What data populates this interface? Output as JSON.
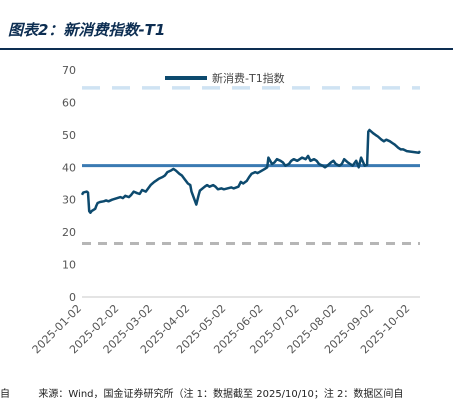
{
  "title": "图表2：新消费指数-T1",
  "footer": {
    "prefix": "自",
    "source": "来源：Wind，国金证券研究所（注 1：数据截至 2025/10/10；注 2：数据区间自"
  },
  "colors": {
    "series": "#0d4a6e",
    "mean": "#3a7ab2",
    "upper_band": "#cfe3f3",
    "lower_band": "#b6b6b6",
    "title": "#0d2e52"
  },
  "chart_data": {
    "type": "line",
    "ylim": [
      0,
      70
    ],
    "yticks": [
      0,
      10,
      20,
      30,
      40,
      50,
      60,
      70
    ],
    "xlim": [
      "2025-01-02",
      "2025-10-10"
    ],
    "xticks": [
      "2025-01-02",
      "2025-02-02",
      "2025-03-02",
      "2025-04-02",
      "2025-05-02",
      "2025-06-02",
      "2025-07-02",
      "2025-08-02",
      "2025-09-02",
      "2025-10-02"
    ],
    "legend_position": "top-center",
    "grid": false,
    "series": [
      {
        "name": "新消费-T1指数",
        "style": "solid",
        "points": [
          [
            "2025-01-02",
            31.5
          ],
          [
            "2025-01-03",
            32.2
          ],
          [
            "2025-01-06",
            32.5
          ],
          [
            "2025-01-07",
            32.2
          ],
          [
            "2025-01-08",
            26.5
          ],
          [
            "2025-01-09",
            26.0
          ],
          [
            "2025-01-10",
            26.5
          ],
          [
            "2025-01-13",
            27.2
          ],
          [
            "2025-01-14",
            28.2
          ],
          [
            "2025-01-15",
            29.0
          ],
          [
            "2025-01-17",
            29.3
          ],
          [
            "2025-01-20",
            29.5
          ],
          [
            "2025-01-22",
            29.8
          ],
          [
            "2025-01-24",
            29.5
          ],
          [
            "2025-01-27",
            30.0
          ],
          [
            "2025-02-03",
            30.8
          ],
          [
            "2025-02-05",
            30.5
          ],
          [
            "2025-02-07",
            31.2
          ],
          [
            "2025-02-10",
            30.8
          ],
          [
            "2025-02-12",
            31.5
          ],
          [
            "2025-02-14",
            32.5
          ],
          [
            "2025-02-17",
            32.0
          ],
          [
            "2025-02-19",
            31.8
          ],
          [
            "2025-02-21",
            33.0
          ],
          [
            "2025-02-24",
            32.5
          ],
          [
            "2025-02-26",
            33.5
          ],
          [
            "2025-02-28",
            34.5
          ],
          [
            "2025-03-03",
            35.5
          ],
          [
            "2025-03-05",
            36.0
          ],
          [
            "2025-03-07",
            36.5
          ],
          [
            "2025-03-10",
            37.0
          ],
          [
            "2025-03-12",
            37.5
          ],
          [
            "2025-03-14",
            38.5
          ],
          [
            "2025-03-17",
            39.0
          ],
          [
            "2025-03-19",
            39.5
          ],
          [
            "2025-03-21",
            39.0
          ],
          [
            "2025-03-24",
            38.0
          ],
          [
            "2025-03-26",
            37.5
          ],
          [
            "2025-03-28",
            36.5
          ],
          [
            "2025-03-31",
            35.0
          ],
          [
            "2025-04-02",
            34.5
          ],
          [
            "2025-04-03",
            32.5
          ],
          [
            "2025-04-07",
            28.5
          ],
          [
            "2025-04-08",
            30.0
          ],
          [
            "2025-04-09",
            31.5
          ],
          [
            "2025-04-10",
            32.8
          ],
          [
            "2025-04-14",
            34.0
          ],
          [
            "2025-04-16",
            34.5
          ],
          [
            "2025-04-18",
            34.0
          ],
          [
            "2025-04-21",
            34.5
          ],
          [
            "2025-04-23",
            34.0
          ],
          [
            "2025-04-25",
            33.2
          ],
          [
            "2025-04-28",
            33.5
          ],
          [
            "2025-04-30",
            33.2
          ],
          [
            "2025-05-06",
            33.8
          ],
          [
            "2025-05-08",
            33.5
          ],
          [
            "2025-05-12",
            34.0
          ],
          [
            "2025-05-14",
            35.5
          ],
          [
            "2025-05-16",
            35.0
          ],
          [
            "2025-05-19",
            35.8
          ],
          [
            "2025-05-21",
            37.0
          ],
          [
            "2025-05-23",
            38.0
          ],
          [
            "2025-05-26",
            38.5
          ],
          [
            "2025-05-28",
            38.2
          ],
          [
            "2025-06-03",
            39.5
          ],
          [
            "2025-06-05",
            40.0
          ],
          [
            "2025-06-06",
            43.0
          ],
          [
            "2025-06-09",
            41.0
          ],
          [
            "2025-06-11",
            41.5
          ],
          [
            "2025-06-13",
            42.5
          ],
          [
            "2025-06-16",
            42.0
          ],
          [
            "2025-06-18",
            41.5
          ],
          [
            "2025-06-20",
            40.5
          ],
          [
            "2025-06-23",
            41.0
          ],
          [
            "2025-06-25",
            42.0
          ],
          [
            "2025-06-27",
            42.5
          ],
          [
            "2025-06-30",
            42.0
          ],
          [
            "2025-07-02",
            42.5
          ],
          [
            "2025-07-04",
            43.0
          ],
          [
            "2025-07-07",
            42.5
          ],
          [
            "2025-07-09",
            43.5
          ],
          [
            "2025-07-11",
            42.0
          ],
          [
            "2025-07-14",
            42.5
          ],
          [
            "2025-07-16",
            42.0
          ],
          [
            "2025-07-18",
            41.0
          ],
          [
            "2025-07-21",
            40.5
          ],
          [
            "2025-07-23",
            40.0
          ],
          [
            "2025-07-25",
            40.5
          ],
          [
            "2025-07-28",
            41.5
          ],
          [
            "2025-07-30",
            42.0
          ],
          [
            "2025-08-01",
            41.0
          ],
          [
            "2025-08-04",
            40.5
          ],
          [
            "2025-08-06",
            41.0
          ],
          [
            "2025-08-08",
            42.5
          ],
          [
            "2025-08-11",
            41.5
          ],
          [
            "2025-08-13",
            41.0
          ],
          [
            "2025-08-15",
            40.5
          ],
          [
            "2025-08-18",
            42.0
          ],
          [
            "2025-08-20",
            40.0
          ],
          [
            "2025-08-22",
            43.0
          ],
          [
            "2025-08-25",
            40.5
          ],
          [
            "2025-08-27",
            40.8
          ],
          [
            "2025-08-28",
            51.0
          ],
          [
            "2025-08-29",
            51.5
          ],
          [
            "2025-09-01",
            50.5
          ],
          [
            "2025-09-03",
            50.0
          ],
          [
            "2025-09-05",
            49.5
          ],
          [
            "2025-09-08",
            48.5
          ],
          [
            "2025-09-10",
            48.0
          ],
          [
            "2025-09-12",
            48.5
          ],
          [
            "2025-09-15",
            48.0
          ],
          [
            "2025-09-17",
            47.5
          ],
          [
            "2025-09-19",
            47.0
          ],
          [
            "2025-09-22",
            46.0
          ],
          [
            "2025-09-24",
            45.5
          ],
          [
            "2025-09-26",
            45.5
          ],
          [
            "2025-09-29",
            45.0
          ],
          [
            "2025-10-09",
            44.5
          ],
          [
            "2025-10-10",
            45.0
          ]
        ]
      }
    ],
    "reference_lines": [
      {
        "style": "dashed-light-blue",
        "y": 64.5
      },
      {
        "style": "solid-blue",
        "y": 40.5
      },
      {
        "style": "dashed-grey",
        "y": 16.5
      }
    ]
  }
}
